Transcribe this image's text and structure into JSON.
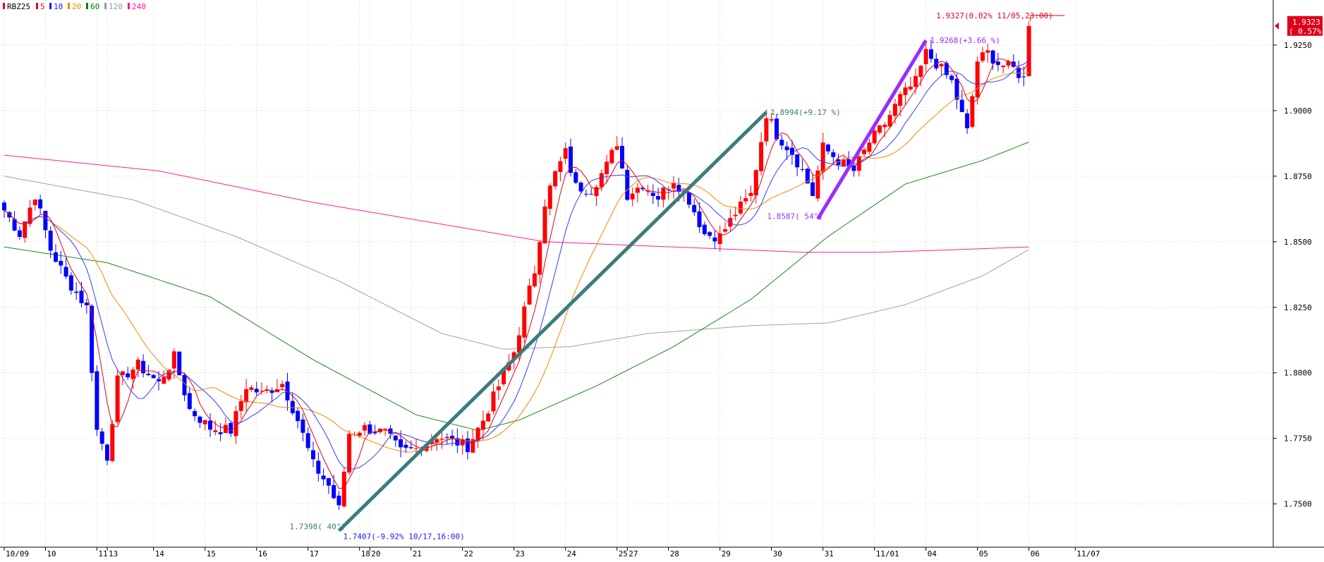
{
  "legend": [
    {
      "label": "RBZ25",
      "color": "#e0001a"
    },
    {
      "label": "5",
      "color": "#e0001a"
    },
    {
      "label": "10",
      "color": "#1a1aff"
    },
    {
      "label": "20",
      "color": "#f08a00"
    },
    {
      "label": "60",
      "color": "#008000"
    },
    {
      "label": "120",
      "color": "#999999"
    },
    {
      "label": "240",
      "color": "#ff1493"
    }
  ],
  "colors": {
    "up": "#ff0000",
    "down": "#0000ff",
    "ma5": "#e0001a",
    "ma10": "#3a3aff",
    "ma20": "#f08a00",
    "ma60": "#1a8a1a",
    "ma120": "#a0a0a0",
    "ma240": "#ff2090",
    "trend1": "#3a7d7d",
    "trend2": "#9a2cff",
    "grid": "#cfcfcf"
  },
  "price_tag": {
    "line1": "1.9323",
    "line2": "( 0.57%)"
  },
  "annotations": {
    "last": "1.9327(0.02% 11/05,23:00)",
    "t2_end": "1.9268(+3.66 %)",
    "t1_end": "1.8994(+9.17 %)",
    "t2_start": "1.8587( 54°)",
    "t1_start": "1.7398( 40°)",
    "low": "1.7407(-9.92% 10/17,16:00)"
  },
  "chart_data": {
    "type": "candlestick",
    "symbol": "RBZ25",
    "moving_averages": [
      5,
      10,
      20,
      60,
      120,
      240
    ],
    "y_ticks": [
      1.75,
      1.775,
      1.8,
      1.825,
      1.85,
      1.875,
      1.9,
      1.925
    ],
    "y_tick_labels": [
      "1.7500",
      "1.7750",
      "1.8000",
      "1.8250",
      "1.8500",
      "1.8750",
      "1.9000",
      "1.9250"
    ],
    "ylim": [
      1.7405,
      1.9395
    ],
    "x_labels": [
      {
        "i": 0,
        "t": "10/09"
      },
      {
        "i": 8,
        "t": "10"
      },
      {
        "i": 18,
        "t": "11"
      },
      {
        "i": 20,
        "t": "13"
      },
      {
        "i": 29,
        "t": "14"
      },
      {
        "i": 39,
        "t": "15"
      },
      {
        "i": 49,
        "t": "16"
      },
      {
        "i": 59,
        "t": "17"
      },
      {
        "i": 69,
        "t": "18"
      },
      {
        "i": 71,
        "t": "20"
      },
      {
        "i": 79,
        "t": "21"
      },
      {
        "i": 89,
        "t": "22"
      },
      {
        "i": 99,
        "t": "23"
      },
      {
        "i": 109,
        "t": "24"
      },
      {
        "i": 119,
        "t": "25"
      },
      {
        "i": 121,
        "t": "27"
      },
      {
        "i": 129,
        "t": "28"
      },
      {
        "i": 139,
        "t": "29"
      },
      {
        "i": 149,
        "t": "30"
      },
      {
        "i": 159,
        "t": "31"
      },
      {
        "i": 169,
        "t": "11/01"
      },
      {
        "i": 179,
        "t": "04"
      },
      {
        "i": 189,
        "t": "05"
      },
      {
        "i": 199,
        "t": "06"
      },
      {
        "i": 208,
        "t": "11/07"
      }
    ],
    "bar_count": 210,
    "trend_lines": [
      {
        "from": [
          65,
          1.7398
        ],
        "to": [
          148,
          1.8994
        ]
      },
      {
        "from": [
          158,
          1.8587
        ],
        "to": [
          179,
          1.9268
        ]
      }
    ],
    "closes_keypoints": [
      [
        0,
        1.862
      ],
      [
        3,
        1.853
      ],
      [
        6,
        1.868
      ],
      [
        9,
        1.847
      ],
      [
        12,
        1.836
      ],
      [
        16,
        1.825
      ],
      [
        18,
        1.778
      ],
      [
        20,
        1.768
      ],
      [
        22,
        1.797
      ],
      [
        26,
        1.803
      ],
      [
        30,
        1.796
      ],
      [
        33,
        1.806
      ],
      [
        36,
        1.786
      ],
      [
        40,
        1.779
      ],
      [
        44,
        1.778
      ],
      [
        47,
        1.795
      ],
      [
        50,
        1.792
      ],
      [
        54,
        1.796
      ],
      [
        57,
        1.782
      ],
      [
        60,
        1.765
      ],
      [
        63,
        1.757
      ],
      [
        65,
        1.748
      ],
      [
        67,
        1.777
      ],
      [
        70,
        1.779
      ],
      [
        74,
        1.777
      ],
      [
        77,
        1.77
      ],
      [
        80,
        1.771
      ],
      [
        84,
        1.776
      ],
      [
        87,
        1.774
      ],
      [
        90,
        1.772
      ],
      [
        93,
        1.782
      ],
      [
        96,
        1.795
      ],
      [
        99,
        1.808
      ],
      [
        101,
        1.824
      ],
      [
        103,
        1.839
      ],
      [
        105,
        1.865
      ],
      [
        107,
        1.876
      ],
      [
        109,
        1.884
      ],
      [
        111,
        1.871
      ],
      [
        114,
        1.87
      ],
      [
        117,
        1.879
      ],
      [
        119,
        1.888
      ],
      [
        121,
        1.868
      ],
      [
        124,
        1.872
      ],
      [
        127,
        1.867
      ],
      [
        130,
        1.874
      ],
      [
        133,
        1.866
      ],
      [
        136,
        1.853
      ],
      [
        139,
        1.852
      ],
      [
        142,
        1.861
      ],
      [
        145,
        1.868
      ],
      [
        148,
        1.899
      ],
      [
        150,
        1.891
      ],
      [
        153,
        1.884
      ],
      [
        155,
        1.877
      ],
      [
        157,
        1.868
      ],
      [
        159,
        1.886
      ],
      [
        162,
        1.881
      ],
      [
        165,
        1.877
      ],
      [
        168,
        1.888
      ],
      [
        171,
        1.895
      ],
      [
        174,
        1.905
      ],
      [
        177,
        1.911
      ],
      [
        179,
        1.922
      ],
      [
        181,
        1.918
      ],
      [
        184,
        1.911
      ],
      [
        187,
        1.892
      ],
      [
        189,
        1.919
      ],
      [
        191,
        1.922
      ],
      [
        193,
        1.918
      ],
      [
        196,
        1.916
      ],
      [
        198,
        1.912
      ],
      [
        199,
        1.9323
      ]
    ],
    "ma_keypoints": {
      "ma60": [
        [
          0,
          1.848
        ],
        [
          20,
          1.842
        ],
        [
          40,
          1.829
        ],
        [
          60,
          1.805
        ],
        [
          80,
          1.784
        ],
        [
          92,
          1.778
        ],
        [
          100,
          1.782
        ],
        [
          115,
          1.795
        ],
        [
          130,
          1.81
        ],
        [
          145,
          1.828
        ],
        [
          160,
          1.852
        ],
        [
          175,
          1.872
        ],
        [
          190,
          1.881
        ],
        [
          199,
          1.888
        ]
      ],
      "ma120": [
        [
          0,
          1.875
        ],
        [
          25,
          1.866
        ],
        [
          45,
          1.852
        ],
        [
          65,
          1.835
        ],
        [
          85,
          1.815
        ],
        [
          97,
          1.809
        ],
        [
          110,
          1.81
        ],
        [
          125,
          1.815
        ],
        [
          145,
          1.818
        ],
        [
          160,
          1.819
        ],
        [
          175,
          1.826
        ],
        [
          190,
          1.837
        ],
        [
          199,
          1.847
        ]
      ],
      "ma240": [
        [
          0,
          1.883
        ],
        [
          30,
          1.877
        ],
        [
          60,
          1.865
        ],
        [
          90,
          1.855
        ],
        [
          105,
          1.85
        ],
        [
          130,
          1.848
        ],
        [
          155,
          1.846
        ],
        [
          170,
          1.846
        ],
        [
          185,
          1.847
        ],
        [
          199,
          1.848
        ]
      ]
    }
  }
}
